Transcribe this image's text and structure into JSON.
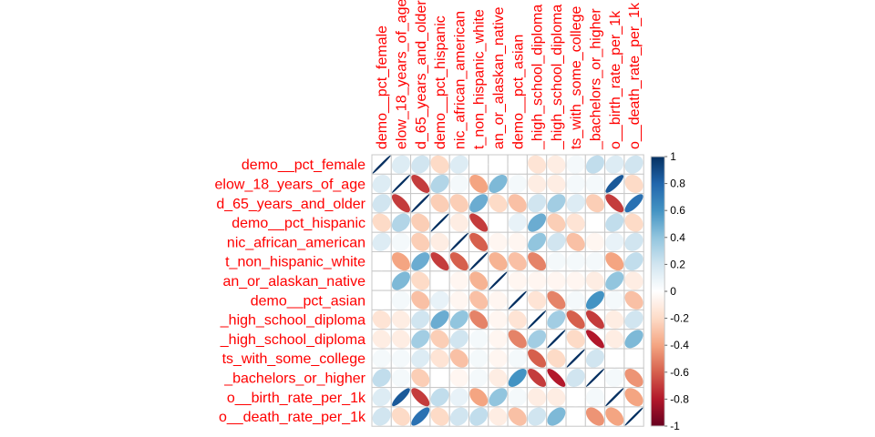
{
  "chart_data": {
    "type": "heatmap",
    "method": "ellipse",
    "variables": [
      "demo__pct_female",
      "elow_18_years_of_age",
      "d_65_years_and_older",
      "demo__pct_hispanic",
      "nic_african_american",
      "t_non_hispanic_white",
      "an_or_alaskan_native",
      "demo__pct_asian",
      "_high_school_diploma",
      "_high_school_diploma",
      "ts_with_some_college",
      "_bachelors_or_higher",
      "o__birth_rate_per_1k",
      "o__death_rate_per_1k"
    ],
    "matrix": [
      [
        1.0,
        0.15,
        0.2,
        -0.2,
        0.15,
        0.0,
        0.0,
        0.0,
        -0.15,
        -0.1,
        0.05,
        0.25,
        0.15,
        0.2
      ],
      [
        0.15,
        1.0,
        -0.7,
        0.3,
        0.05,
        -0.4,
        0.45,
        0.05,
        -0.1,
        -0.1,
        0.05,
        0.05,
        0.85,
        -0.2
      ],
      [
        0.2,
        -0.7,
        1.0,
        -0.25,
        -0.25,
        0.5,
        -0.2,
        -0.3,
        0.2,
        0.35,
        0.15,
        -0.25,
        -0.7,
        0.75
      ],
      [
        -0.2,
        0.3,
        -0.25,
        1.0,
        -0.1,
        -0.7,
        0.0,
        0.1,
        0.5,
        -0.25,
        -0.15,
        0.0,
        0.25,
        -0.2
      ],
      [
        0.15,
        0.05,
        -0.25,
        -0.1,
        1.0,
        -0.6,
        -0.05,
        -0.05,
        0.4,
        0.2,
        -0.3,
        -0.05,
        0.1,
        0.2
      ],
      [
        0.0,
        -0.4,
        0.5,
        -0.7,
        -0.6,
        1.0,
        -0.35,
        -0.3,
        -0.5,
        0.05,
        0.05,
        0.05,
        -0.4,
        0.25
      ],
      [
        0.0,
        0.45,
        -0.2,
        0.0,
        -0.05,
        -0.35,
        1.0,
        -0.05,
        -0.05,
        -0.05,
        -0.05,
        -0.1,
        0.4,
        -0.1
      ],
      [
        0.0,
        0.05,
        -0.3,
        0.1,
        -0.05,
        -0.3,
        -0.05,
        1.0,
        -0.15,
        -0.5,
        0.05,
        0.6,
        0.05,
        -0.3
      ],
      [
        -0.15,
        -0.1,
        0.2,
        0.5,
        0.4,
        -0.5,
        -0.05,
        -0.15,
        1.0,
        0.35,
        -0.6,
        -0.7,
        -0.1,
        0.2
      ],
      [
        -0.1,
        -0.1,
        0.35,
        -0.25,
        0.2,
        0.05,
        -0.05,
        -0.5,
        0.35,
        1.0,
        -0.2,
        -0.8,
        -0.1,
        0.45
      ],
      [
        0.05,
        0.05,
        0.15,
        -0.15,
        -0.3,
        0.05,
        -0.05,
        0.05,
        -0.6,
        -0.2,
        1.0,
        0.2,
        0.0,
        0.0
      ],
      [
        0.25,
        0.05,
        -0.25,
        0.0,
        -0.05,
        0.05,
        -0.1,
        0.6,
        -0.7,
        -0.8,
        0.2,
        1.0,
        0.05,
        -0.45
      ],
      [
        0.15,
        0.85,
        -0.7,
        0.25,
        0.1,
        -0.4,
        0.4,
        0.05,
        -0.1,
        -0.1,
        0.0,
        0.05,
        1.0,
        -0.4
      ],
      [
        0.2,
        -0.2,
        0.75,
        -0.2,
        0.2,
        0.25,
        -0.1,
        -0.3,
        0.2,
        0.45,
        0.0,
        -0.45,
        -0.4,
        1.0
      ]
    ],
    "colorbar": {
      "ticks": [
        "1",
        "0.8",
        "0.6",
        "0.4",
        "0.2",
        "0",
        "-0.2",
        "-0.4",
        "-0.6",
        "-0.8",
        "-1"
      ],
      "range": [
        -1,
        1
      ]
    },
    "colors": {
      "label": "#ff0000",
      "grid": "#c8c8c8",
      "scale": [
        "#67001F",
        "#B2182B",
        "#D6604D",
        "#F4A582",
        "#FDDBC7",
        "#FFFFFF",
        "#D1E5F0",
        "#92C5DE",
        "#4393C3",
        "#2166AC",
        "#053061"
      ]
    },
    "legend": "right",
    "grid": true
  }
}
